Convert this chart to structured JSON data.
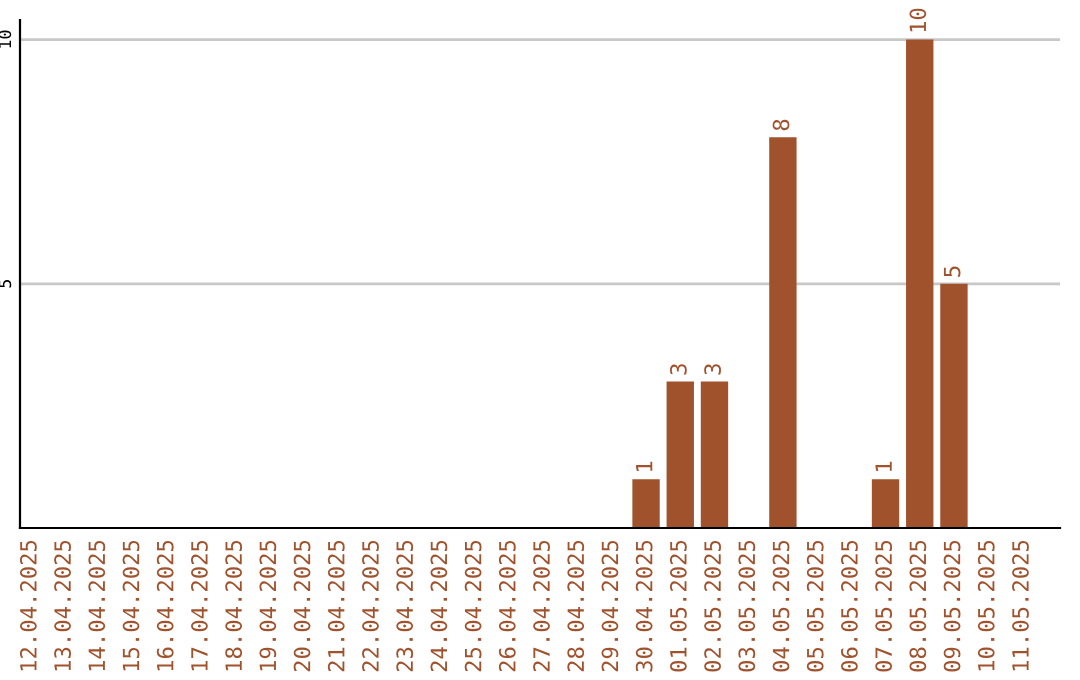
{
  "chart_data": {
    "type": "bar",
    "categories": [
      "12.04.2025",
      "13.04.2025",
      "14.04.2025",
      "15.04.2025",
      "16.04.2025",
      "17.04.2025",
      "18.04.2025",
      "19.04.2025",
      "20.04.2025",
      "21.04.2025",
      "22.04.2025",
      "23.04.2025",
      "24.04.2025",
      "25.04.2025",
      "26.04.2025",
      "27.04.2025",
      "28.04.2025",
      "29.04.2025",
      "30.04.2025",
      "01.05.2025",
      "02.05.2025",
      "03.05.2025",
      "04.05.2025",
      "05.05.2025",
      "06.05.2025",
      "07.05.2025",
      "08.05.2025",
      "09.05.2025",
      "10.05.2025",
      "11.05.2025"
    ],
    "values": [
      0,
      0,
      0,
      0,
      0,
      0,
      0,
      0,
      0,
      0,
      0,
      0,
      0,
      0,
      0,
      0,
      0,
      0,
      1,
      3,
      3,
      0,
      8,
      0,
      0,
      1,
      10,
      5,
      0,
      0
    ],
    "value_labels": [
      null,
      null,
      null,
      null,
      null,
      null,
      null,
      null,
      null,
      null,
      null,
      null,
      null,
      null,
      null,
      null,
      null,
      null,
      "1",
      "3",
      "3",
      null,
      "8",
      null,
      null,
      "1",
      "10",
      "5",
      null,
      null
    ],
    "color": "#a0522d",
    "ylim": [
      0,
      10.4
    ],
    "yticks": [
      5,
      10
    ],
    "grid": "y"
  }
}
